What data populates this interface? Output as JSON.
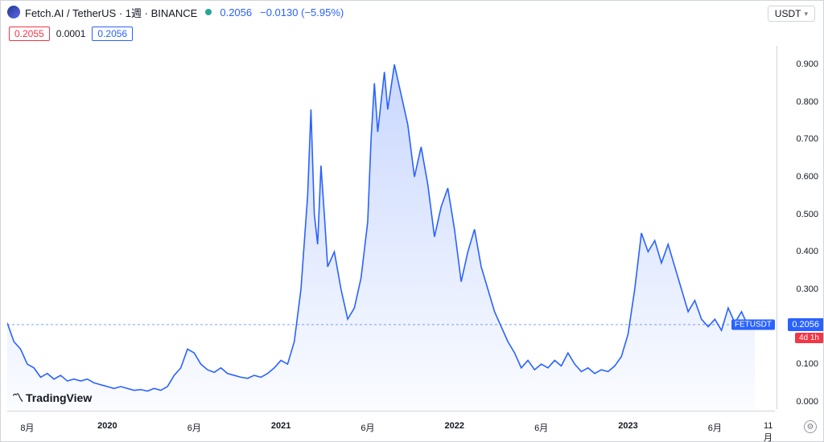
{
  "header": {
    "symbol_name": "Fetch.AI / TetherUS",
    "interval": "1週",
    "exchange": "BINANCE",
    "current_price": "0.2056",
    "change_abs": "−0.0130",
    "change_pct": "(−5.95%)"
  },
  "ohlc": {
    "open": "0.2055",
    "mid": "0.0001",
    "close": "0.2056"
  },
  "unit_selector": {
    "value": "USDT"
  },
  "logo": {
    "mark": "〽",
    "text": "TradingView"
  },
  "current_marker": {
    "symbol": "FETUSDT",
    "price": "0.2056",
    "countdown": "4d 1h",
    "y_value": 0.2056
  },
  "chart": {
    "type": "area",
    "line_color": "#2962ff",
    "fill_top": "rgba(41,98,255,0.25)",
    "fill_bottom": "rgba(41,98,255,0.02)",
    "line_width": 1.6,
    "background_color": "#ffffff",
    "ymin": -0.02,
    "ymax": 0.95,
    "y_ticks": [
      0.0,
      0.1,
      0.2,
      0.3,
      0.4,
      0.5,
      0.6,
      0.7,
      0.8,
      0.9
    ],
    "y_tick_labels": [
      "0.000",
      "0.100",
      "0.200",
      "0.300",
      "0.400",
      "0.500",
      "0.600",
      "0.700",
      "0.800",
      "0.900"
    ],
    "xmin": 0,
    "xmax": 230,
    "x_ticks": [
      {
        "pos": 6,
        "label": "8月",
        "bold": false
      },
      {
        "pos": 30,
        "label": "2020",
        "bold": true
      },
      {
        "pos": 56,
        "label": "6月",
        "bold": false
      },
      {
        "pos": 82,
        "label": "2021",
        "bold": true
      },
      {
        "pos": 108,
        "label": "6月",
        "bold": false
      },
      {
        "pos": 134,
        "label": "2022",
        "bold": true
      },
      {
        "pos": 160,
        "label": "6月",
        "bold": false
      },
      {
        "pos": 186,
        "label": "2023",
        "bold": true
      },
      {
        "pos": 212,
        "label": "6月",
        "bold": false
      },
      {
        "pos": 228,
        "label": "11月",
        "bold": false
      }
    ],
    "series": [
      [
        0,
        0.21
      ],
      [
        2,
        0.16
      ],
      [
        4,
        0.14
      ],
      [
        6,
        0.1
      ],
      [
        8,
        0.09
      ],
      [
        10,
        0.065
      ],
      [
        12,
        0.075
      ],
      [
        14,
        0.06
      ],
      [
        16,
        0.07
      ],
      [
        18,
        0.055
      ],
      [
        20,
        0.06
      ],
      [
        22,
        0.055
      ],
      [
        24,
        0.06
      ],
      [
        26,
        0.05
      ],
      [
        28,
        0.045
      ],
      [
        30,
        0.04
      ],
      [
        32,
        0.035
      ],
      [
        34,
        0.04
      ],
      [
        36,
        0.035
      ],
      [
        38,
        0.03
      ],
      [
        40,
        0.032
      ],
      [
        42,
        0.028
      ],
      [
        44,
        0.035
      ],
      [
        46,
        0.03
      ],
      [
        48,
        0.04
      ],
      [
        50,
        0.07
      ],
      [
        52,
        0.09
      ],
      [
        54,
        0.14
      ],
      [
        56,
        0.13
      ],
      [
        58,
        0.1
      ],
      [
        60,
        0.085
      ],
      [
        62,
        0.078
      ],
      [
        64,
        0.09
      ],
      [
        66,
        0.075
      ],
      [
        68,
        0.07
      ],
      [
        70,
        0.065
      ],
      [
        72,
        0.062
      ],
      [
        74,
        0.07
      ],
      [
        76,
        0.065
      ],
      [
        78,
        0.075
      ],
      [
        80,
        0.09
      ],
      [
        82,
        0.11
      ],
      [
        84,
        0.1
      ],
      [
        86,
        0.16
      ],
      [
        88,
        0.3
      ],
      [
        90,
        0.55
      ],
      [
        91,
        0.78
      ],
      [
        92,
        0.5
      ],
      [
        93,
        0.42
      ],
      [
        94,
        0.63
      ],
      [
        95,
        0.5
      ],
      [
        96,
        0.36
      ],
      [
        98,
        0.4
      ],
      [
        100,
        0.3
      ],
      [
        102,
        0.22
      ],
      [
        104,
        0.25
      ],
      [
        106,
        0.33
      ],
      [
        108,
        0.48
      ],
      [
        109,
        0.7
      ],
      [
        110,
        0.85
      ],
      [
        111,
        0.72
      ],
      [
        112,
        0.8
      ],
      [
        113,
        0.88
      ],
      [
        114,
        0.78
      ],
      [
        115,
        0.84
      ],
      [
        116,
        0.9
      ],
      [
        118,
        0.82
      ],
      [
        120,
        0.74
      ],
      [
        122,
        0.6
      ],
      [
        124,
        0.68
      ],
      [
        126,
        0.58
      ],
      [
        128,
        0.44
      ],
      [
        130,
        0.52
      ],
      [
        132,
        0.57
      ],
      [
        134,
        0.46
      ],
      [
        136,
        0.32
      ],
      [
        138,
        0.4
      ],
      [
        140,
        0.46
      ],
      [
        142,
        0.36
      ],
      [
        144,
        0.3
      ],
      [
        146,
        0.24
      ],
      [
        148,
        0.2
      ],
      [
        150,
        0.16
      ],
      [
        152,
        0.13
      ],
      [
        154,
        0.09
      ],
      [
        156,
        0.11
      ],
      [
        158,
        0.085
      ],
      [
        160,
        0.1
      ],
      [
        162,
        0.09
      ],
      [
        164,
        0.11
      ],
      [
        166,
        0.095
      ],
      [
        168,
        0.13
      ],
      [
        170,
        0.1
      ],
      [
        172,
        0.08
      ],
      [
        174,
        0.09
      ],
      [
        176,
        0.075
      ],
      [
        178,
        0.085
      ],
      [
        180,
        0.08
      ],
      [
        182,
        0.095
      ],
      [
        184,
        0.12
      ],
      [
        186,
        0.18
      ],
      [
        188,
        0.3
      ],
      [
        190,
        0.45
      ],
      [
        192,
        0.4
      ],
      [
        194,
        0.43
      ],
      [
        196,
        0.37
      ],
      [
        198,
        0.42
      ],
      [
        200,
        0.36
      ],
      [
        202,
        0.3
      ],
      [
        204,
        0.24
      ],
      [
        206,
        0.27
      ],
      [
        208,
        0.22
      ],
      [
        210,
        0.2
      ],
      [
        212,
        0.22
      ],
      [
        214,
        0.19
      ],
      [
        216,
        0.25
      ],
      [
        218,
        0.21
      ],
      [
        220,
        0.24
      ],
      [
        222,
        0.2
      ],
      [
        224,
        0.21
      ]
    ]
  }
}
